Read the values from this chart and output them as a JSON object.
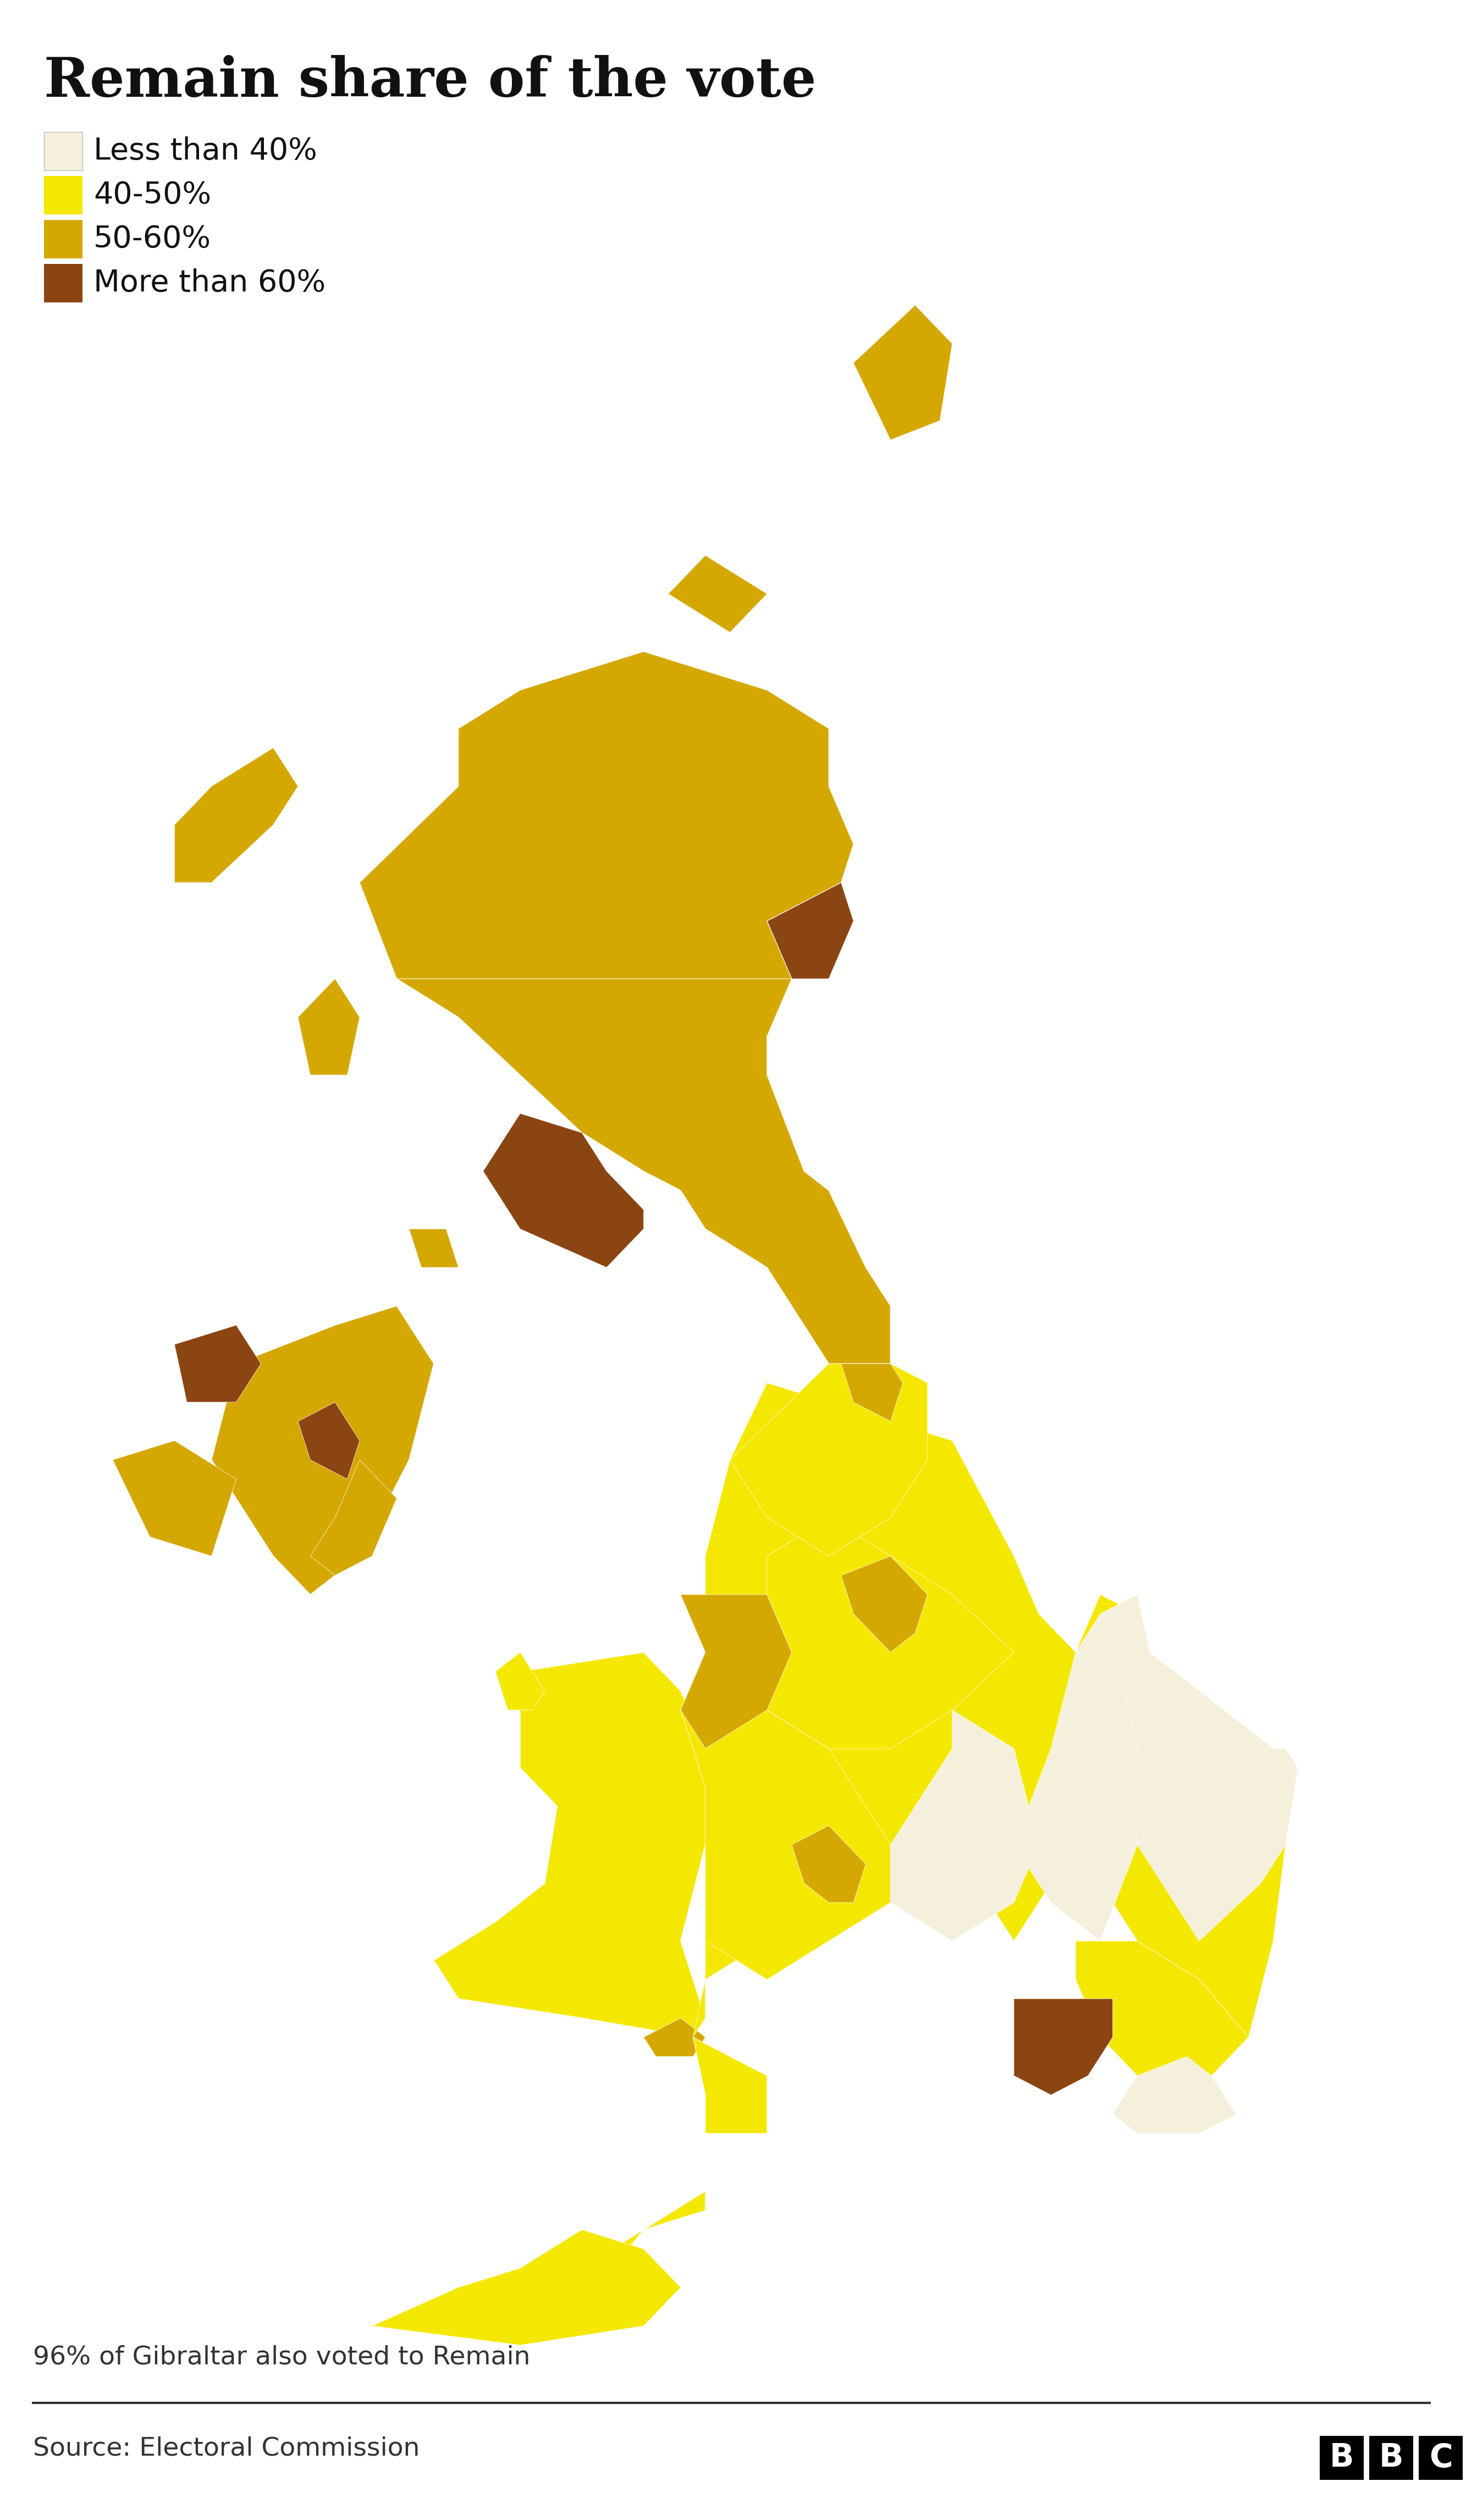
{
  "title": "Remain share of the vote",
  "legend_labels": [
    "Less than 40%",
    "40-50%",
    "50-60%",
    "More than 60%"
  ],
  "legend_colors": [
    "#F5F0DC",
    "#F5E800",
    "#D4A800",
    "#8B4513"
  ],
  "color_less40": "#F5F0DC",
  "color_40_50": "#F5E800",
  "color_50_60": "#D4A800",
  "color_more60": "#8B4513",
  "footnote": "96% of Gibraltar also voted to Remain",
  "source": "Source: Electoral Commission",
  "bbc_text": "BBC",
  "background_color": "#FFFFFF",
  "title_fontsize": 52,
  "legend_fontsize": 32,
  "footnote_fontsize": 28,
  "source_fontsize": 28
}
